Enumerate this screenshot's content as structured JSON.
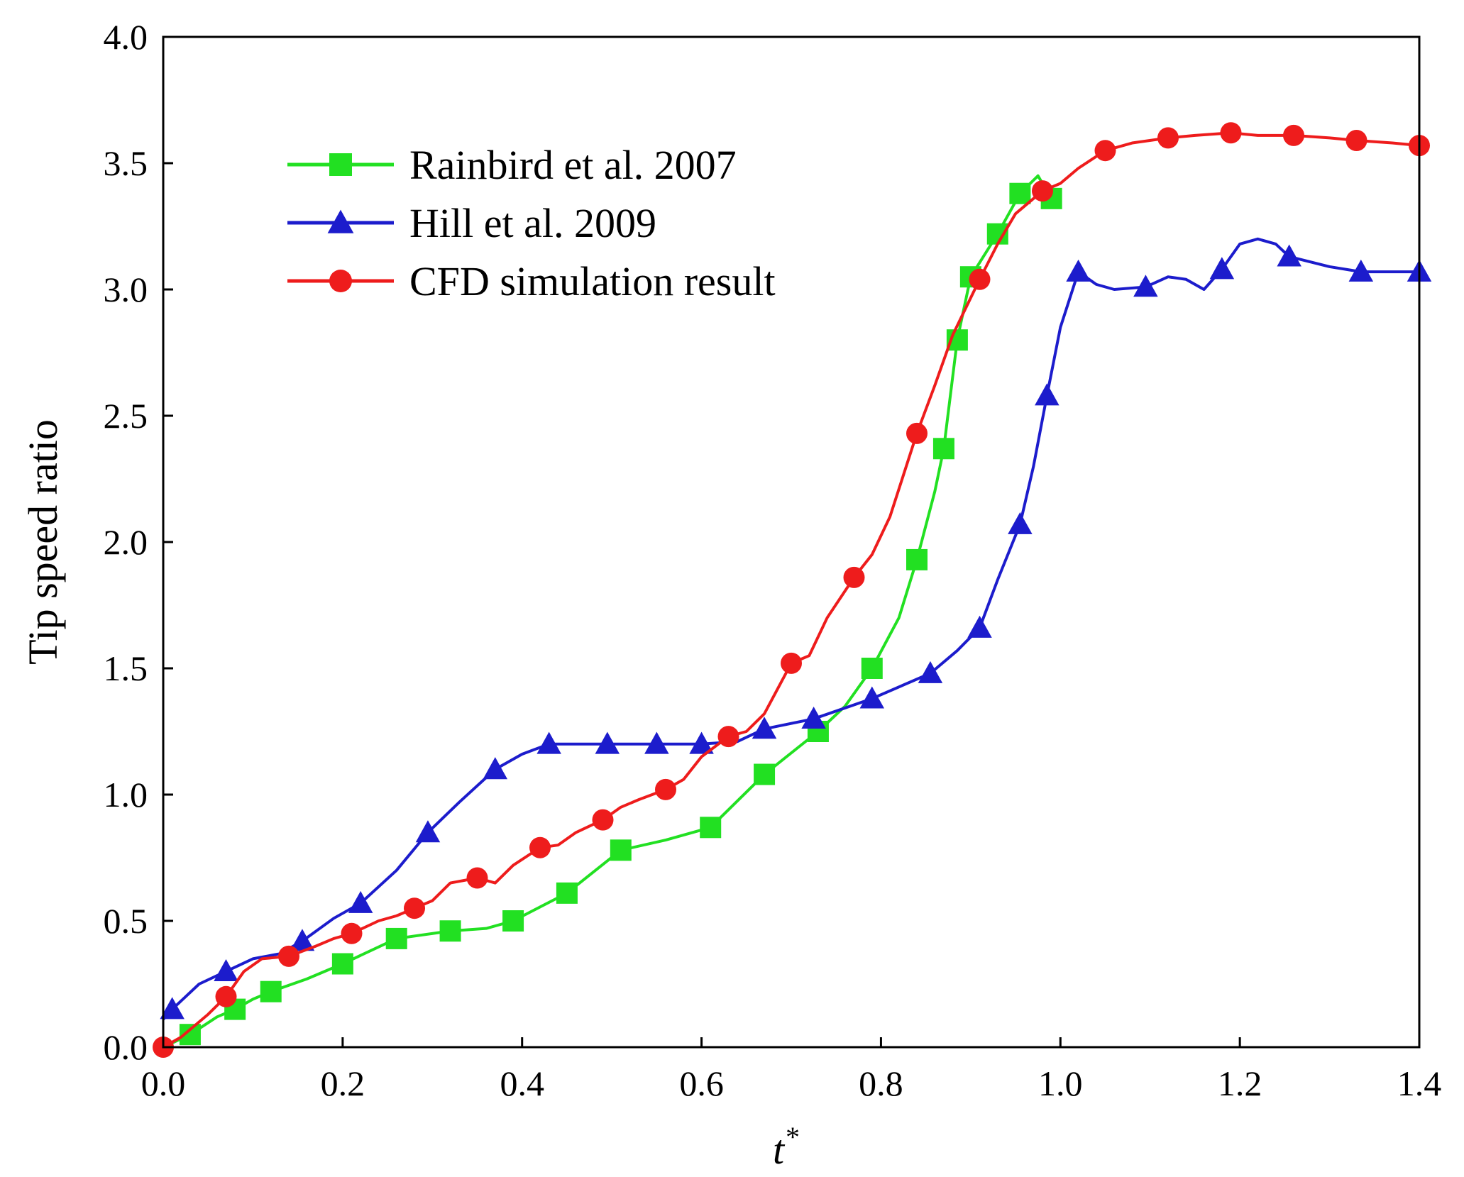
{
  "chart_data": {
    "type": "line",
    "xlabel": "t*",
    "xlabel_base": "t",
    "xlabel_sup": "*",
    "ylabel": "Tip speed ratio",
    "xlim": [
      0.0,
      1.4
    ],
    "ylim": [
      0.0,
      4.0
    ],
    "xticks": [
      "0.0",
      "0.2",
      "0.4",
      "0.6",
      "0.8",
      "1.0",
      "1.2",
      "1.4"
    ],
    "yticks": [
      "0.0",
      "0.5",
      "1.0",
      "1.5",
      "2.0",
      "2.5",
      "3.0",
      "3.5",
      "4.0"
    ],
    "grid": false,
    "legend_position": "top-left",
    "series": [
      {
        "name": "Rainbird et al. 2007",
        "color": "#22e022",
        "marker": "square",
        "x": [
          0.03,
          0.08,
          0.12,
          0.2,
          0.26,
          0.32,
          0.39,
          0.45,
          0.51,
          0.61,
          0.67,
          0.73,
          0.79,
          0.84,
          0.87,
          0.885,
          0.9,
          0.93,
          0.955,
          0.99
        ],
        "y": [
          0.05,
          0.15,
          0.22,
          0.33,
          0.43,
          0.46,
          0.5,
          0.61,
          0.78,
          0.87,
          1.08,
          1.25,
          1.5,
          1.93,
          2.37,
          2.8,
          3.05,
          3.22,
          3.38,
          3.36
        ],
        "line_x": [
          0.0,
          0.03,
          0.06,
          0.08,
          0.1,
          0.12,
          0.16,
          0.2,
          0.26,
          0.32,
          0.36,
          0.39,
          0.45,
          0.51,
          0.56,
          0.61,
          0.67,
          0.73,
          0.76,
          0.79,
          0.82,
          0.84,
          0.86,
          0.87,
          0.885,
          0.9,
          0.93,
          0.955,
          0.975,
          0.99
        ],
        "line_y": [
          0.0,
          0.05,
          0.12,
          0.15,
          0.19,
          0.22,
          0.27,
          0.33,
          0.43,
          0.46,
          0.47,
          0.5,
          0.61,
          0.78,
          0.82,
          0.87,
          1.08,
          1.25,
          1.35,
          1.5,
          1.7,
          1.93,
          2.2,
          2.37,
          2.8,
          3.05,
          3.22,
          3.38,
          3.45,
          3.36
        ]
      },
      {
        "name": "Hill et al. 2009",
        "color": "#1c1ccc",
        "marker": "triangle",
        "x": [
          0.01,
          0.07,
          0.155,
          0.22,
          0.295,
          0.37,
          0.43,
          0.495,
          0.55,
          0.6,
          0.67,
          0.725,
          0.79,
          0.855,
          0.91,
          0.955,
          0.985,
          1.02,
          1.095,
          1.18,
          1.255,
          1.335,
          1.4
        ],
        "y": [
          0.15,
          0.3,
          0.42,
          0.57,
          0.85,
          1.1,
          1.2,
          1.2,
          1.2,
          1.2,
          1.26,
          1.3,
          1.38,
          1.48,
          1.66,
          2.07,
          2.58,
          3.07,
          3.01,
          3.08,
          3.13,
          3.07,
          3.07
        ],
        "line_x": [
          0.0,
          0.01,
          0.04,
          0.07,
          0.1,
          0.13,
          0.155,
          0.19,
          0.22,
          0.26,
          0.295,
          0.33,
          0.37,
          0.4,
          0.43,
          0.495,
          0.55,
          0.6,
          0.64,
          0.67,
          0.725,
          0.79,
          0.855,
          0.885,
          0.91,
          0.93,
          0.955,
          0.97,
          0.985,
          1.0,
          1.02,
          1.04,
          1.06,
          1.095,
          1.12,
          1.14,
          1.16,
          1.18,
          1.2,
          1.22,
          1.24,
          1.255,
          1.3,
          1.335,
          1.4
        ],
        "line_y": [
          0.11,
          0.15,
          0.25,
          0.3,
          0.35,
          0.37,
          0.42,
          0.51,
          0.57,
          0.7,
          0.85,
          0.97,
          1.1,
          1.16,
          1.2,
          1.2,
          1.2,
          1.2,
          1.21,
          1.26,
          1.3,
          1.38,
          1.48,
          1.57,
          1.66,
          1.85,
          2.07,
          2.3,
          2.58,
          2.85,
          3.07,
          3.02,
          3.0,
          3.01,
          3.05,
          3.04,
          3.0,
          3.08,
          3.18,
          3.2,
          3.18,
          3.13,
          3.09,
          3.07,
          3.07
        ]
      },
      {
        "name": "CFD simulation result",
        "color": "#ee1c1c",
        "marker": "circle",
        "x": [
          0.0,
          0.07,
          0.14,
          0.21,
          0.28,
          0.35,
          0.42,
          0.49,
          0.56,
          0.63,
          0.7,
          0.77,
          0.84,
          0.91,
          0.98,
          1.05,
          1.12,
          1.19,
          1.26,
          1.33,
          1.4
        ],
        "y": [
          0.0,
          0.2,
          0.36,
          0.45,
          0.55,
          0.67,
          0.79,
          0.9,
          1.02,
          1.23,
          1.52,
          1.86,
          2.43,
          3.04,
          3.39,
          3.55,
          3.6,
          3.62,
          3.61,
          3.59,
          3.57
        ],
        "line_x": [
          0.0,
          0.02,
          0.05,
          0.07,
          0.09,
          0.11,
          0.14,
          0.17,
          0.19,
          0.21,
          0.24,
          0.26,
          0.28,
          0.3,
          0.32,
          0.35,
          0.37,
          0.39,
          0.42,
          0.44,
          0.46,
          0.49,
          0.51,
          0.53,
          0.56,
          0.58,
          0.6,
          0.63,
          0.65,
          0.67,
          0.7,
          0.72,
          0.74,
          0.77,
          0.79,
          0.81,
          0.84,
          0.86,
          0.88,
          0.91,
          0.93,
          0.95,
          0.98,
          1.0,
          1.02,
          1.05,
          1.08,
          1.12,
          1.15,
          1.19,
          1.22,
          1.26,
          1.3,
          1.33,
          1.37,
          1.4
        ],
        "line_y": [
          0.0,
          0.04,
          0.13,
          0.2,
          0.3,
          0.35,
          0.36,
          0.4,
          0.43,
          0.45,
          0.5,
          0.52,
          0.55,
          0.58,
          0.65,
          0.67,
          0.65,
          0.72,
          0.79,
          0.8,
          0.85,
          0.9,
          0.95,
          0.98,
          1.02,
          1.06,
          1.15,
          1.23,
          1.25,
          1.32,
          1.52,
          1.55,
          1.7,
          1.86,
          1.95,
          2.1,
          2.43,
          2.62,
          2.82,
          3.04,
          3.18,
          3.3,
          3.39,
          3.42,
          3.48,
          3.55,
          3.58,
          3.6,
          3.61,
          3.62,
          3.61,
          3.61,
          3.6,
          3.59,
          3.58,
          3.57
        ]
      }
    ]
  }
}
